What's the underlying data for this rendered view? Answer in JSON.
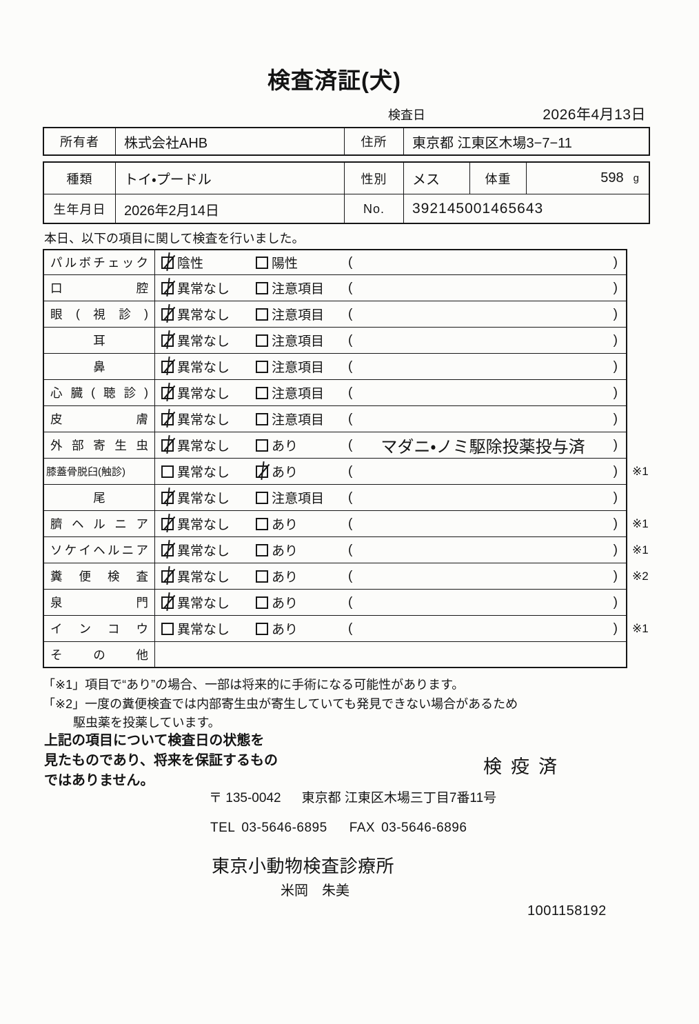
{
  "title": "検査済証(犬)",
  "header": {
    "inspection_date_label": "検査日",
    "inspection_date": "2026年4月13日",
    "owner_label": "所有者",
    "owner": "株式会社AHB",
    "address_label": "住所",
    "address": "東京都 江東区木場3−7−11",
    "breed_label": "種類",
    "breed": "トイ・プードル",
    "sex_label": "性別",
    "sex": "メス",
    "weight_label": "体重",
    "weight": "598",
    "weight_unit": "g",
    "birthdate_label": "生年月日",
    "birthdate": "2026年2月14日",
    "no_label": "No.",
    "no": "392145001465643"
  },
  "intro": "本日、以下の項目に関して検査を行いました。",
  "table": {
    "paren_open": "(",
    "paren_close": ")",
    "rows": [
      {
        "label": "パルボチェック",
        "align": "justify",
        "options": [
          {
            "label": "陰性",
            "checked": true
          },
          {
            "label": "陽性",
            "checked": false
          }
        ],
        "has_paren": true,
        "paren_text": "",
        "note": ""
      },
      {
        "label": "口腔",
        "align": "justify",
        "options": [
          {
            "label": "異常なし",
            "checked": true
          },
          {
            "label": "注意項目",
            "checked": false
          }
        ],
        "has_paren": true,
        "paren_text": "",
        "note": ""
      },
      {
        "label": "眼(視診)",
        "align": "justify",
        "options": [
          {
            "label": "異常なし",
            "checked": true
          },
          {
            "label": "注意項目",
            "checked": false
          }
        ],
        "has_paren": true,
        "paren_text": "",
        "note": ""
      },
      {
        "label": "耳",
        "align": "center",
        "options": [
          {
            "label": "異常なし",
            "checked": true
          },
          {
            "label": "注意項目",
            "checked": false
          }
        ],
        "has_paren": true,
        "paren_text": "",
        "note": ""
      },
      {
        "label": "鼻",
        "align": "center",
        "options": [
          {
            "label": "異常なし",
            "checked": true
          },
          {
            "label": "注意項目",
            "checked": false
          }
        ],
        "has_paren": true,
        "paren_text": "",
        "note": ""
      },
      {
        "label": "心臓(聴診)",
        "align": "justify",
        "options": [
          {
            "label": "異常なし",
            "checked": true
          },
          {
            "label": "注意項目",
            "checked": false
          }
        ],
        "has_paren": true,
        "paren_text": "",
        "note": ""
      },
      {
        "label": "皮膚",
        "align": "justify",
        "options": [
          {
            "label": "異常なし",
            "checked": true
          },
          {
            "label": "注意項目",
            "checked": false
          }
        ],
        "has_paren": true,
        "paren_text": "",
        "note": ""
      },
      {
        "label": "外部寄生虫",
        "align": "justify",
        "options": [
          {
            "label": "異常なし",
            "checked": true
          },
          {
            "label": "あり",
            "checked": false
          }
        ],
        "has_paren": true,
        "paren_text": "マダニ・ノミ駆除投薬投与済",
        "note": ""
      },
      {
        "label": "膝蓋骨脱臼(触診)",
        "align": "compact",
        "options": [
          {
            "label": "異常なし",
            "checked": false
          },
          {
            "label": "あり",
            "checked": true
          }
        ],
        "has_paren": true,
        "paren_text": "",
        "note": "※1"
      },
      {
        "label": "尾",
        "align": "center",
        "options": [
          {
            "label": "異常なし",
            "checked": true
          },
          {
            "label": "注意項目",
            "checked": false
          }
        ],
        "has_paren": true,
        "paren_text": "",
        "note": ""
      },
      {
        "label": "臍ヘルニア",
        "align": "justify",
        "options": [
          {
            "label": "異常なし",
            "checked": true
          },
          {
            "label": "あり",
            "checked": false
          }
        ],
        "has_paren": true,
        "paren_text": "",
        "note": "※1"
      },
      {
        "label": "ソケイヘルニア",
        "align": "justify",
        "options": [
          {
            "label": "異常なし",
            "checked": true
          },
          {
            "label": "あり",
            "checked": false
          }
        ],
        "has_paren": true,
        "paren_text": "",
        "note": "※1"
      },
      {
        "label": "糞便検査",
        "align": "justify",
        "options": [
          {
            "label": "異常なし",
            "checked": true
          },
          {
            "label": "あり",
            "checked": false
          }
        ],
        "has_paren": true,
        "paren_text": "",
        "note": "※2"
      },
      {
        "label": "泉門",
        "align": "justify",
        "options": [
          {
            "label": "異常なし",
            "checked": true
          },
          {
            "label": "あり",
            "checked": false
          }
        ],
        "has_paren": true,
        "paren_text": "",
        "note": ""
      },
      {
        "label": "インコウ",
        "align": "justify",
        "options": [
          {
            "label": "異常なし",
            "checked": false
          },
          {
            "label": "あり",
            "checked": false
          }
        ],
        "has_paren": true,
        "paren_text": "",
        "note": "※1"
      },
      {
        "label": "その他",
        "align": "justify",
        "options": [],
        "has_paren": false,
        "paren_text": "",
        "note": ""
      }
    ]
  },
  "notes": {
    "note1": "「※1」項目で“あり”の場合、一部は将来的に手術になる可能性があります。",
    "note2": "「※2」一度の糞便検査では内部寄生虫が寄生していても発見できない場合があるため",
    "note2_cont": "駆虫薬を投薬しています。"
  },
  "disclaimer": {
    "line1": "上記の項目について検査日の状態を",
    "line2": "見たものであり、将来を保証するもの",
    "line3": "ではありません。"
  },
  "quarantine_stamp": "検疫済",
  "footer": {
    "postal": "〒 135-0042",
    "address": "東京都 江東区木場三丁目7番11号",
    "tel_label": "TEL",
    "tel": "03-5646-6895",
    "fax_label": "FAX",
    "fax": "03-5646-6896",
    "clinic_name": "東京小動物検査診療所",
    "veterinarian": "米岡　朱美",
    "serial_number": "1001158192"
  }
}
